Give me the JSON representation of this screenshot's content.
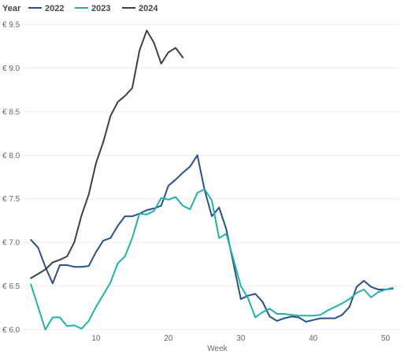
{
  "chart_data": {
    "type": "line",
    "legend": {
      "title": "Year",
      "placement": "top-left"
    },
    "xlabel": "Week",
    "ylabel": "",
    "xlim": [
      0,
      52
    ],
    "ylim": [
      6.0,
      9.5
    ],
    "x_ticks": [
      10,
      20,
      30,
      40,
      50
    ],
    "y_ticks": [
      6.0,
      6.5,
      7.0,
      7.5,
      8.0,
      8.5,
      9.0,
      9.5
    ],
    "y_tick_labels": [
      "€ 6.0",
      "€ 6.5",
      "€ 7.0",
      "€ 7.5",
      "€ 8.0",
      "€ 8.5",
      "€ 9.0",
      "€ 9.5"
    ],
    "grid": "horizontal",
    "series": [
      {
        "name": "2022",
        "color": "#2d4f8a",
        "x": [
          1,
          2,
          3,
          4,
          5,
          6,
          7,
          8,
          9,
          10,
          11,
          12,
          13,
          14,
          15,
          16,
          17,
          18,
          19,
          20,
          21,
          22,
          23,
          24,
          25,
          26,
          27,
          28,
          29,
          30,
          31,
          32,
          33,
          34,
          35,
          36,
          37,
          38,
          39,
          40,
          41,
          42,
          43,
          44,
          45,
          46,
          47,
          48,
          49,
          50,
          51
        ],
        "values": [
          7.03,
          6.94,
          6.72,
          6.53,
          6.74,
          6.74,
          6.72,
          6.72,
          6.73,
          6.89,
          7.02,
          7.05,
          7.19,
          7.3,
          7.3,
          7.33,
          7.37,
          7.39,
          7.42,
          7.65,
          7.72,
          7.8,
          7.87,
          8.0,
          7.6,
          7.3,
          7.4,
          7.15,
          6.75,
          6.35,
          6.39,
          6.41,
          6.32,
          6.15,
          6.1,
          6.13,
          6.15,
          6.14,
          6.09,
          6.11,
          6.13,
          6.13,
          6.13,
          6.17,
          6.26,
          6.49,
          6.56,
          6.49,
          6.46,
          6.46,
          6.47
        ]
      },
      {
        "name": "2023",
        "color": "#20b2aa",
        "x": [
          1,
          2,
          3,
          4,
          5,
          6,
          7,
          8,
          9,
          10,
          11,
          12,
          13,
          14,
          15,
          16,
          17,
          18,
          19,
          20,
          21,
          22,
          23,
          24,
          25,
          26,
          27,
          28,
          29,
          30,
          31,
          32,
          33,
          34,
          35,
          36,
          37,
          38,
          39,
          40,
          41,
          42,
          43,
          44,
          45,
          46,
          47,
          48,
          49,
          50,
          51
        ],
        "values": [
          6.52,
          6.26,
          6.0,
          6.14,
          6.14,
          6.04,
          6.05,
          6.01,
          6.1,
          6.26,
          6.4,
          6.54,
          6.76,
          6.84,
          7.05,
          7.33,
          7.32,
          7.36,
          7.51,
          7.49,
          7.52,
          7.42,
          7.38,
          7.57,
          7.61,
          7.48,
          7.05,
          7.1,
          6.8,
          6.5,
          6.36,
          6.14,
          6.2,
          6.24,
          6.18,
          6.18,
          6.17,
          6.16,
          6.16,
          6.16,
          6.17,
          6.22,
          6.26,
          6.3,
          6.35,
          6.42,
          6.46,
          6.37,
          6.43,
          6.46,
          6.48
        ]
      },
      {
        "name": "2024",
        "color": "#3b4243",
        "x": [
          1,
          2,
          3,
          4,
          5,
          6,
          7,
          8,
          9,
          10,
          11,
          12,
          13,
          14,
          15,
          16,
          17,
          18,
          19,
          20,
          21,
          22
        ],
        "values": [
          6.59,
          6.64,
          6.69,
          6.77,
          6.8,
          6.84,
          7.0,
          7.31,
          7.55,
          7.91,
          8.15,
          8.45,
          8.61,
          8.68,
          8.77,
          9.2,
          9.43,
          9.29,
          9.05,
          9.18,
          9.23,
          9.12
        ]
      }
    ]
  }
}
